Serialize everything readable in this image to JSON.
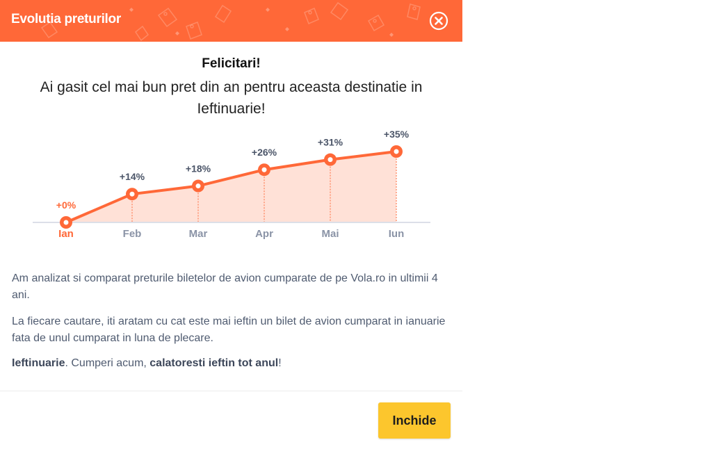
{
  "header": {
    "title": "Evolutia preturilor",
    "close_icon": "close-circle-icon"
  },
  "main": {
    "headline": "Felicitari!",
    "subline": "Ai gasit cel mai bun pret din an pentru aceasta destinatie in Ieftinuarie!",
    "paragraphs": {
      "p1": "Am analizat si comparat preturile biletelor de avion cumparate de pe Vola.ro in ultimii 4 ani.",
      "p2": "La fiecare cautare, iti aratam cu cat este mai ieftin un bilet de avion cumparat in ianuarie fata de unul cumparat in luna de plecare.",
      "p3_bold1": "Ieftinuarie",
      "p3_mid": ". Cumperi acum, ",
      "p3_bold2": "calatoresti ieftin tot anul",
      "p3_end": "!"
    }
  },
  "chart_data": {
    "type": "area",
    "categories": [
      "Ian",
      "Feb",
      "Mar",
      "Apr",
      "Mai",
      "Iun"
    ],
    "values": [
      0,
      14,
      18,
      26,
      31,
      35
    ],
    "data_labels": [
      "+0%",
      "+14%",
      "+18%",
      "+26%",
      "+31%",
      "+35%"
    ],
    "highlight_index": 0,
    "ylim": [
      0,
      35
    ],
    "colors": {
      "line": "#ff6838",
      "fill": "#ffe1d7",
      "label": "#4b5568",
      "highlight": "#ff6838",
      "axis_label": "#8a93a6",
      "baseline": "#dcdfe8"
    }
  },
  "footer": {
    "close_label": "Inchide"
  },
  "colors": {
    "header_bg": "#ff6838",
    "button_bg": "#fcc62d"
  }
}
